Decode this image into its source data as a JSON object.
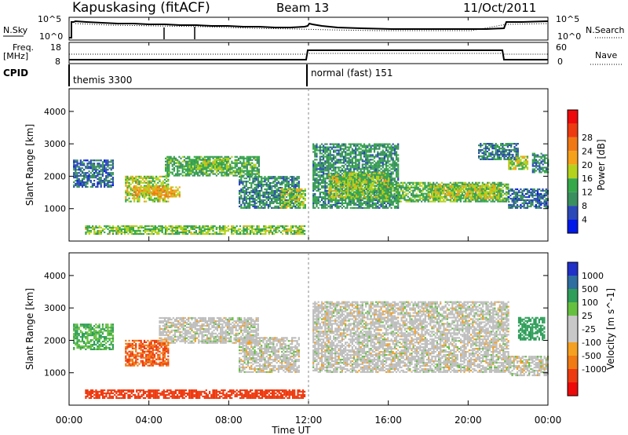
{
  "header": {
    "station": "Kapuskasing (fitACF)",
    "beam": "Beam 13",
    "date": "11/Oct/2011"
  },
  "top_panels": {
    "nsky_label": "N.Sky",
    "nsearch_label": "N.Search",
    "nsky_ticks": [
      "10^5",
      "10^0"
    ],
    "freq_label_1": "Freq.",
    "freq_label_2": "[MHz]",
    "freq_ticks": [
      "18",
      "8"
    ],
    "nave_label": "Nave",
    "nave_ticks": [
      "60",
      "0"
    ],
    "cpid_label": "CPID",
    "cpid_left": "themis 3300",
    "cpid_right": "normal (fast) 151"
  },
  "colors": {
    "power_scale": [
      "#0018e8",
      "#2a48b8",
      "#3a8f5e",
      "#35a84a",
      "#b4d21c",
      "#f5a11a",
      "#f07814",
      "#ee3a10",
      "#ee0a0a"
    ],
    "velocity_scale": [
      "#2030c8",
      "#2e6ea0",
      "#2f9e5a",
      "#66c040",
      "#c8c8c8",
      "#c8c8c8",
      "#f5a020",
      "#f07a14",
      "#ee3a10",
      "#ee0a0a"
    ],
    "gray": "#bebebe"
  },
  "chart_data": [
    {
      "type": "heatmap",
      "title": "Power",
      "xlabel": "Time UT",
      "ylabel": "Slant Range [km]",
      "xlim": [
        "00:00",
        "24:00"
      ],
      "ylim": [
        0,
        4700
      ],
      "x_ticks": [
        "00:00",
        "04:00",
        "08:00",
        "12:00",
        "16:00",
        "20:00",
        "00:00"
      ],
      "y_ticks": [
        1000,
        2000,
        3000,
        4000
      ],
      "colorbar": {
        "label": "Power [dB]",
        "range": [
          0,
          32
        ],
        "ticks": [
          "4",
          "8",
          "12",
          "16",
          "20",
          "24",
          "28"
        ]
      },
      "regions": [
        {
          "t": [
            0.2,
            2.2
          ],
          "r": [
            1650,
            2500
          ],
          "v": 8
        },
        {
          "t": [
            2.8,
            5.0
          ],
          "r": [
            1200,
            2000
          ],
          "v": 17
        },
        {
          "t": [
            3.2,
            5.5
          ],
          "r": [
            1350,
            1650
          ],
          "v": 22
        },
        {
          "t": [
            4.8,
            9.5
          ],
          "r": [
            2000,
            2600
          ],
          "v": 13
        },
        {
          "t": [
            6.0,
            8.0
          ],
          "r": [
            2200,
            2500
          ],
          "v": 16
        },
        {
          "t": [
            8.5,
            11.5
          ],
          "r": [
            1000,
            2000
          ],
          "v": 10
        },
        {
          "t": [
            10.6,
            11.8
          ],
          "r": [
            1000,
            1600
          ],
          "v": 17
        },
        {
          "t": [
            12.2,
            16.5
          ],
          "r": [
            1000,
            3000
          ],
          "v": 11
        },
        {
          "t": [
            13.0,
            16.0
          ],
          "r": [
            1300,
            2100
          ],
          "v": 17
        },
        {
          "t": [
            15.5,
            22.0
          ],
          "r": [
            1200,
            1800
          ],
          "v": 14
        },
        {
          "t": [
            18.0,
            21.5
          ],
          "r": [
            1300,
            1700
          ],
          "v": 18
        },
        {
          "t": [
            22.0,
            24.0
          ],
          "r": [
            1000,
            1600
          ],
          "v": 8
        },
        {
          "t": [
            22.0,
            23.0
          ],
          "r": [
            2200,
            2600
          ],
          "v": 18
        },
        {
          "t": [
            23.2,
            24.0
          ],
          "r": [
            2100,
            2700
          ],
          "v": 10
        },
        {
          "t": [
            20.5,
            22.5
          ],
          "r": [
            2500,
            3000
          ],
          "v": 9
        },
        {
          "t": [
            0.8,
            11.8
          ],
          "r": [
            200,
            450
          ],
          "v": 16
        }
      ]
    },
    {
      "type": "heatmap",
      "title": "Velocity",
      "xlabel": "Time UT",
      "ylabel": "Slant Range [km]",
      "xlim": [
        "00:00",
        "24:00"
      ],
      "ylim": [
        0,
        4700
      ],
      "x_ticks": [
        "00:00",
        "04:00",
        "08:00",
        "12:00",
        "16:00",
        "20:00",
        "00:00"
      ],
      "y_ticks": [
        1000,
        2000,
        3000,
        4000
      ],
      "colorbar": {
        "label": "Velocity [m s^-1]",
        "ticks": [
          "1000",
          "500",
          "100",
          "25",
          "-25",
          "-100",
          "-500",
          "-1000"
        ]
      },
      "regions": [
        {
          "t": [
            0.2,
            2.2
          ],
          "r": [
            1700,
            2500
          ],
          "v": 100
        },
        {
          "t": [
            2.8,
            5.0
          ],
          "r": [
            1200,
            2000
          ],
          "v": -300
        },
        {
          "t": [
            4.5,
            9.5
          ],
          "r": [
            1900,
            2700
          ],
          "v": 0
        },
        {
          "t": [
            8.5,
            11.5
          ],
          "r": [
            1000,
            2100
          ],
          "v": 0
        },
        {
          "t": [
            12.2,
            22.0
          ],
          "r": [
            1000,
            3200
          ],
          "v": 0
        },
        {
          "t": [
            22.0,
            24.0
          ],
          "r": [
            900,
            1500
          ],
          "v": 0
        },
        {
          "t": [
            22.5,
            23.8
          ],
          "r": [
            2000,
            2700
          ],
          "v": 150
        },
        {
          "t": [
            0.8,
            11.8
          ],
          "r": [
            200,
            450
          ],
          "v": -500
        }
      ]
    }
  ]
}
